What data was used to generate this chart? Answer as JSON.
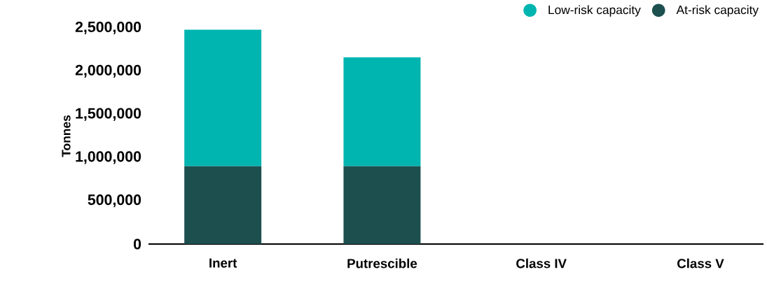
{
  "chart_data": {
    "type": "bar",
    "stacked": true,
    "ylabel": "Tonnes",
    "categories": [
      "Inert",
      "Putrescible",
      "Class IV",
      "Class V"
    ],
    "series": [
      {
        "name": "At-risk capacity",
        "color": "#1d4f4f",
        "values": [
          900000,
          900000,
          0,
          0
        ]
      },
      {
        "name": "Low-risk capacity",
        "color": "#00b5b0",
        "values": [
          1580000,
          1260000,
          0,
          0
        ]
      }
    ],
    "ylim": [
      0,
      2500000
    ],
    "yticks": [
      {
        "value": 0,
        "label": "0"
      },
      {
        "value": 500000,
        "label": "500,000"
      },
      {
        "value": 1000000,
        "label": "1,000,000"
      },
      {
        "value": 1500000,
        "label": "1,500,000"
      },
      {
        "value": 2000000,
        "label": "2,000,000"
      },
      {
        "value": 2500000,
        "label": "2,500,000"
      }
    ],
    "grid": false,
    "legend": "top right"
  }
}
